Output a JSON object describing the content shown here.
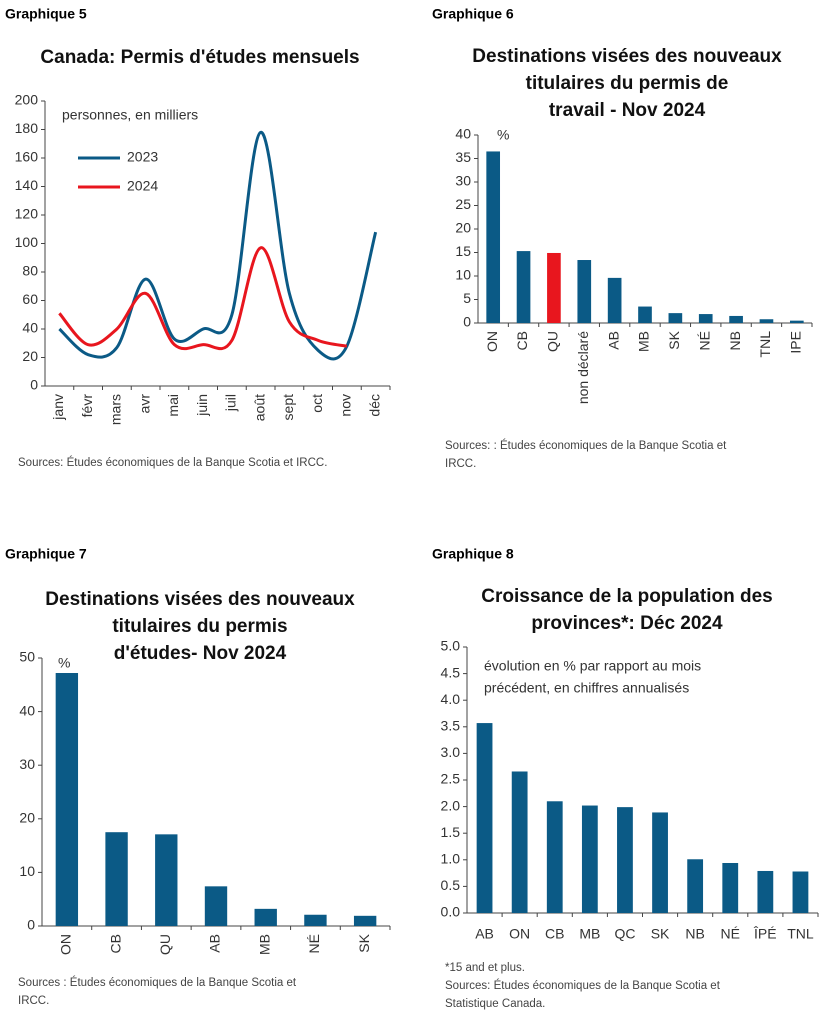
{
  "chart_data": [
    {
      "type": "line",
      "label": "Graphique 5",
      "title": [
        "Canada: Permis d'études mensuels"
      ],
      "annotation": [
        "personnes, en milliers"
      ],
      "categories": [
        "janv",
        "févr",
        "mars",
        "avr",
        "mai",
        "juin",
        "juil",
        "août",
        "sept",
        "oct",
        "nov",
        "déc"
      ],
      "series": [
        {
          "name": "2023",
          "color": "#0b5a86",
          "values": [
            40,
            22,
            27,
            75,
            33,
            40,
            50,
            178,
            65,
            25,
            28,
            108
          ]
        },
        {
          "name": "2024",
          "color": "#e8161e",
          "values": [
            51,
            29,
            40,
            65,
            29,
            29,
            32,
            97,
            45,
            32,
            28,
            null
          ]
        }
      ],
      "ylim": [
        0,
        200
      ],
      "yticks": [
        0,
        20,
        40,
        60,
        80,
        100,
        120,
        140,
        160,
        180,
        200
      ],
      "legend": "upper-left",
      "sources": [
        "Sources: Études économiques de la Banque Scotia et IRCC."
      ]
    },
    {
      "type": "bar",
      "label": "Graphique 6",
      "title": [
        "Destinations visées des nouveaux",
        "titulaires du permis de",
        "travail - Nov 2024"
      ],
      "annotation": [
        "%"
      ],
      "categories": [
        "ON",
        "CB",
        "QU",
        "non déclaré",
        "AB",
        "MB",
        "SK",
        "NÉ",
        "NB",
        "TNL",
        "IPE"
      ],
      "values": [
        36.5,
        15.3,
        14.9,
        13.4,
        9.6,
        3.5,
        2.1,
        1.9,
        1.5,
        0.8,
        0.5
      ],
      "colors": [
        "#0b5a86",
        "#0b5a86",
        "#e8161e",
        "#0b5a86",
        "#0b5a86",
        "#0b5a86",
        "#0b5a86",
        "#0b5a86",
        "#0b5a86",
        "#0b5a86",
        "#0b5a86"
      ],
      "ylim": [
        0,
        40
      ],
      "yticks": [
        0,
        5,
        10,
        15,
        20,
        25,
        30,
        35,
        40
      ],
      "sources": [
        "Sources: : Études économiques de la Banque Scotia et",
        "IRCC."
      ]
    },
    {
      "type": "bar",
      "label": "Graphique 7",
      "title": [
        "Destinations visées des nouveaux",
        "titulaires du permis",
        "d'études- Nov 2024"
      ],
      "annotation": [
        "%"
      ],
      "categories": [
        "ON",
        "CB",
        "QU",
        "AB",
        "MB",
        "NÉ",
        "SK"
      ],
      "values": [
        47.2,
        17.5,
        17.1,
        7.4,
        3.2,
        2.1,
        1.9
      ],
      "colors": [
        "#0b5a86",
        "#0b5a86",
        "#0b5a86",
        "#0b5a86",
        "#0b5a86",
        "#0b5a86",
        "#0b5a86"
      ],
      "ylim": [
        0,
        50
      ],
      "yticks": [
        0,
        10,
        20,
        30,
        40,
        50
      ],
      "sources": [
        "Sources : Études économiques de la Banque Scotia et",
        "IRCC."
      ]
    },
    {
      "type": "bar",
      "label": "Graphique 8",
      "title": [
        "Croissance de la population des",
        "provinces*: Déc 2024"
      ],
      "annotation": [
        "évolution en % par rapport au mois",
        "précédent, en chiffres annualisés"
      ],
      "categories": [
        "AB",
        "ON",
        "CB",
        "MB",
        "QC",
        "SK",
        "NB",
        "NÉ",
        "ÎPÉ",
        "TNL"
      ],
      "values": [
        3.57,
        2.66,
        2.1,
        2.02,
        1.99,
        1.89,
        1.01,
        0.94,
        0.79,
        0.78
      ],
      "colors": [
        "#0b5a86",
        "#0b5a86",
        "#0b5a86",
        "#0b5a86",
        "#0b5a86",
        "#0b5a86",
        "#0b5a86",
        "#0b5a86",
        "#0b5a86",
        "#0b5a86"
      ],
      "ylim": [
        0,
        5
      ],
      "yticks": [
        {
          "value": 0,
          "label": "0.0"
        },
        {
          "value": 0.5,
          "label": "0.5"
        },
        {
          "value": 1,
          "label": "1.0"
        },
        {
          "value": 1.5,
          "label": "1.5"
        },
        {
          "value": 2,
          "label": "2.0"
        },
        {
          "value": 2.5,
          "label": "2.5"
        },
        {
          "value": 3,
          "label": "3.0"
        },
        {
          "value": 3.5,
          "label": "3.5"
        },
        {
          "value": 4,
          "label": "4.0"
        },
        {
          "value": 4.5,
          "label": "4.5"
        },
        {
          "value": 5,
          "label": "5.0"
        }
      ],
      "sources": [
        "*15 and et plus.",
        "Sources: Études économiques de la Banque Scotia et",
        "Statistique Canada."
      ]
    }
  ]
}
